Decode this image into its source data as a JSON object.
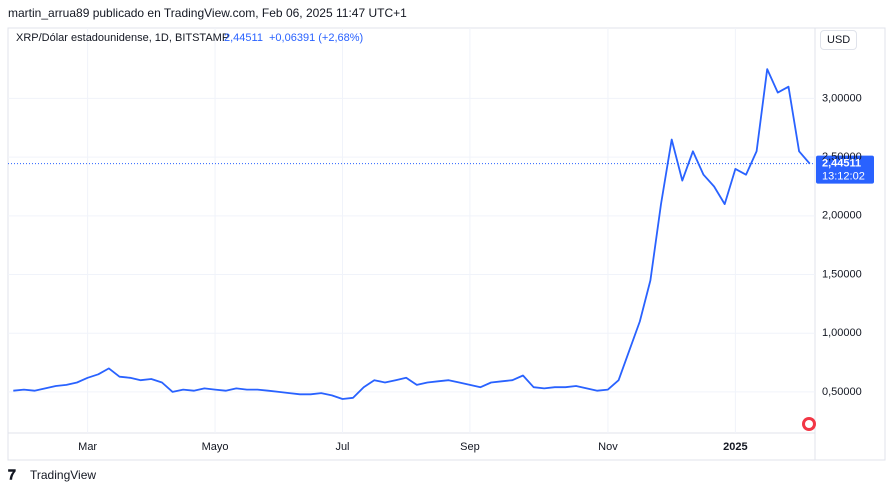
{
  "header": {
    "byline": "martin_arrua89 publicado en TradingView.com, Feb 06, 2025 11:47 UTC+1",
    "symbol": "XRP/Dólar estadounidense, 1D, BITSTAMP",
    "price": "2,44511",
    "change": "+0,06391 (+2,68%)",
    "currency": "USD"
  },
  "footer": {
    "brand": "TradingView"
  },
  "chart_data": {
    "type": "line",
    "categories": [
      null,
      null,
      null,
      null,
      null,
      null,
      null,
      "Mar",
      null,
      null,
      null,
      null,
      null,
      null,
      null,
      null,
      null,
      null,
      null,
      "Mayo",
      null,
      null,
      null,
      null,
      null,
      null,
      null,
      null,
      null,
      null,
      null,
      "Jul",
      null,
      null,
      null,
      null,
      null,
      null,
      null,
      null,
      null,
      null,
      null,
      "Sep",
      null,
      null,
      null,
      null,
      null,
      null,
      null,
      null,
      null,
      null,
      null,
      null,
      "Nov",
      null,
      null,
      null,
      null,
      null,
      null,
      null,
      null,
      null,
      null,
      null,
      "2025",
      null,
      null,
      null,
      null,
      null,
      null,
      null
    ],
    "series": [
      {
        "name": "XRP/Dólar estadounidense",
        "color": "#2962ff",
        "values": [
          0.51,
          0.52,
          0.51,
          0.53,
          0.55,
          0.56,
          0.58,
          0.62,
          0.65,
          0.7,
          0.63,
          0.62,
          0.6,
          0.61,
          0.58,
          0.5,
          0.52,
          0.51,
          0.53,
          0.52,
          0.51,
          0.53,
          0.52,
          0.52,
          0.51,
          0.5,
          0.49,
          0.48,
          0.48,
          0.49,
          0.47,
          0.44,
          0.45,
          0.54,
          0.6,
          0.58,
          0.6,
          0.62,
          0.56,
          0.58,
          0.59,
          0.6,
          0.58,
          0.56,
          0.54,
          0.58,
          0.59,
          0.6,
          0.64,
          0.54,
          0.53,
          0.54,
          0.54,
          0.55,
          0.53,
          0.51,
          0.52,
          0.6,
          0.85,
          1.1,
          1.45,
          2.1,
          2.65,
          2.3,
          2.55,
          2.35,
          2.25,
          2.1,
          2.4,
          2.35,
          2.55,
          3.25,
          3.05,
          3.1,
          2.55,
          2.44511
        ]
      }
    ],
    "last_price": {
      "value": 2.44511,
      "label": "2,44511"
    },
    "countdown": "13:12:02",
    "ylim": [
      0.15,
      3.6
    ],
    "yticks": [
      {
        "value": 0.5,
        "label": "0,50000"
      },
      {
        "value": 1,
        "label": "1,00000"
      },
      {
        "value": 1.5,
        "label": "1,50000"
      },
      {
        "value": 2,
        "label": "2,00000"
      },
      {
        "value": 2.5,
        "label": "2,50000"
      },
      {
        "value": 3,
        "label": "3,00000"
      }
    ],
    "grid": true
  }
}
